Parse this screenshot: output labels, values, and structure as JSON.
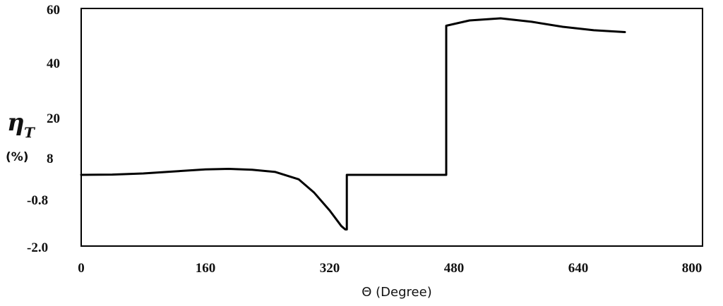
{
  "chart_data": {
    "type": "line",
    "xlabel": "Θ (Degree)",
    "ylabel": {
      "symbol": "η",
      "subscript": "T",
      "unit": "(%)"
    },
    "x_ticks": [
      "0",
      "160",
      "320",
      "480",
      "640",
      "800"
    ],
    "y_ticks": [
      "60",
      "40",
      "20",
      "8",
      "-0.8",
      "-2.0"
    ],
    "xlim": [
      0,
      800
    ],
    "grid": false,
    "legend": "none",
    "series": [
      {
        "color": "#000000",
        "points": [
          {
            "x": 0,
            "y": 0.0
          },
          {
            "x": 40,
            "y": 0.1
          },
          {
            "x": 80,
            "y": 0.5
          },
          {
            "x": 120,
            "y": 1.2
          },
          {
            "x": 160,
            "y": 1.9
          },
          {
            "x": 190,
            "y": 2.1
          },
          {
            "x": 220,
            "y": 1.8
          },
          {
            "x": 250,
            "y": 1.0
          },
          {
            "x": 280,
            "y": -0.4
          },
          {
            "x": 300,
            "y": -1.6
          },
          {
            "x": 320,
            "y": -3.2
          },
          {
            "x": 335,
            "y": -4.6
          },
          {
            "x": 340,
            "y": -4.9
          },
          {
            "x": 342,
            "y": -4.9
          },
          {
            "x": 342,
            "y": 0.0
          },
          {
            "x": 470,
            "y": 0.0
          },
          {
            "x": 470,
            "y": 54.0
          },
          {
            "x": 500,
            "y": 56.0
          },
          {
            "x": 540,
            "y": 56.8
          },
          {
            "x": 580,
            "y": 55.5
          },
          {
            "x": 620,
            "y": 53.6
          },
          {
            "x": 660,
            "y": 52.3
          },
          {
            "x": 700,
            "y": 51.6
          }
        ]
      }
    ]
  }
}
